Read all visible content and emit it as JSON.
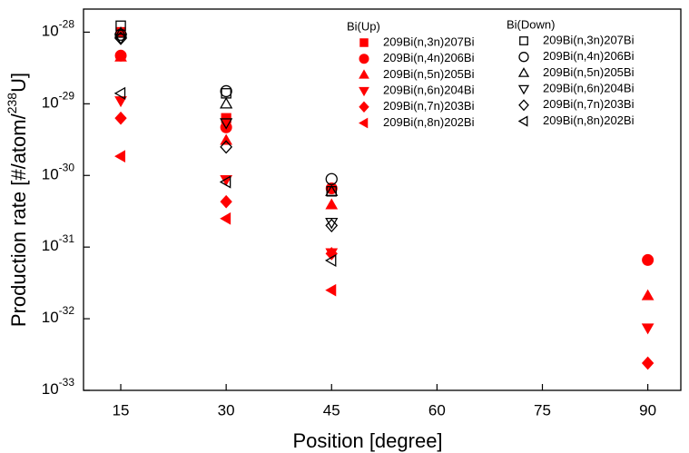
{
  "chart_data": {
    "type": "scatter",
    "y_label": [
      "Production rate [#/atom/",
      "238",
      "U]"
    ],
    "x_label": "Position [degree]",
    "xlim": [
      9.7,
      94.7
    ],
    "xticks": [
      15,
      30,
      45,
      60,
      75,
      90
    ],
    "ylim": [
      1e-33,
      2.1e-28
    ],
    "log_y": true,
    "yticks": [
      {
        "value": 1e-28,
        "label": "10",
        "exponent": "-28"
      },
      {
        "value": 1e-29,
        "label": "10",
        "exponent": "-29"
      },
      {
        "value": 1e-30,
        "label": "10",
        "exponent": "-30"
      },
      {
        "value": 1e-31,
        "label": "10",
        "exponent": "-31"
      },
      {
        "value": 1e-32,
        "label": "10",
        "exponent": "-32"
      },
      {
        "value": 1e-33,
        "label": "10",
        "exponent": "-33"
      }
    ],
    "x": [
      15,
      30,
      45,
      90
    ],
    "groups": [
      {
        "title": "Bi(Up)",
        "series": [
          {
            "name": "209Bi(n,3n)207Bi",
            "color": "#ff0000",
            "filled": true,
            "marker": "square",
            "values": [
              1e-28,
              6.3e-30,
              null,
              null
            ]
          },
          {
            "name": "209Bi(n,4n)206Bi",
            "color": "#ff0000",
            "filled": true,
            "marker": "circle",
            "values": [
              4.7e-29,
              4.7e-30,
              6.6e-31,
              6.6e-32
            ]
          },
          {
            "name": "209Bi(n,5n)205Bi",
            "color": "#ff0000",
            "filled": true,
            "marker": "triangle-up",
            "values": [
              4.5e-29,
              3.1e-30,
              3.9e-31,
              2.1e-32
            ]
          },
          {
            "name": "209Bi(n,6n)204Bi",
            "color": "#ff0000",
            "filled": true,
            "marker": "triangle-down",
            "values": [
              1.1e-29,
              8.7e-31,
              8.3e-32,
              7.4e-33
            ]
          },
          {
            "name": "209Bi(n,7n)203Bi",
            "color": "#ff0000",
            "filled": true,
            "marker": "diamond",
            "values": [
              6.3e-30,
              4.3e-31,
              8.1e-32,
              2.4e-33
            ]
          },
          {
            "name": "209Bi(n,8n)202Bi",
            "color": "#ff0000",
            "filled": true,
            "marker": "triangle-left",
            "values": [
              1.85e-30,
              2.5e-31,
              2.5e-32,
              null
            ]
          }
        ]
      },
      {
        "title": "Bi(Down)",
        "series": [
          {
            "name": "209Bi(n,3n)207Bi",
            "color": "#000000",
            "filled": false,
            "marker": "square",
            "values": [
              1.23e-28,
              1.4e-29,
              6e-31,
              null
            ]
          },
          {
            "name": "209Bi(n,4n)206Bi",
            "color": "#000000",
            "filled": false,
            "marker": "circle",
            "values": [
              9.2e-29,
              1.5e-29,
              8.9e-31,
              null
            ]
          },
          {
            "name": "209Bi(n,5n)205Bi",
            "color": "#000000",
            "filled": false,
            "marker": "triangle-up",
            "values": [
              9.7e-29,
              1e-29,
              6e-31,
              null
            ]
          },
          {
            "name": "209Bi(n,6n)204Bi",
            "color": "#000000",
            "filled": false,
            "marker": "triangle-down",
            "values": [
              8.2e-29,
              5.4e-30,
              2.2e-31,
              null
            ]
          },
          {
            "name": "209Bi(n,7n)203Bi",
            "color": "#000000",
            "filled": false,
            "marker": "diamond",
            "values": [
              8.2e-29,
              2.5e-30,
              2e-31,
              null
            ]
          },
          {
            "name": "209Bi(n,8n)202Bi",
            "color": "#000000",
            "filled": false,
            "marker": "triangle-left",
            "values": [
              1.4e-29,
              8.1e-31,
              6.5e-32,
              null
            ]
          }
        ]
      }
    ]
  }
}
